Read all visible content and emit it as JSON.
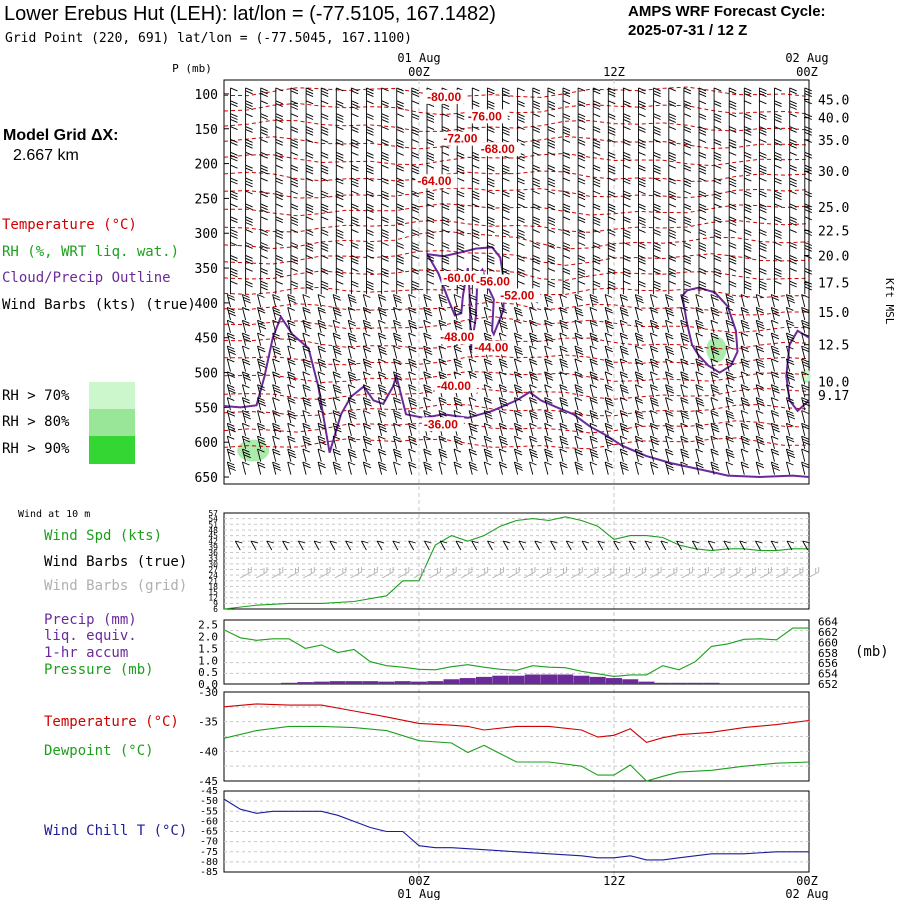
{
  "header": {
    "title": "Lower Erebus Hut (LEH):  lat/lon = (-77.5105, 167.1482)",
    "subtitle": "Grid Point (220, 691) lat/lon = (-77.5045, 167.1100)",
    "cycle_label": "AMPS WRF Forecast Cycle:",
    "cycle_value": "2025-07-31 / 12  Z"
  },
  "model_grid": {
    "label": "Model Grid ΔX:",
    "value": "2.667 km"
  },
  "time_axis": {
    "top_dates": [
      "01 Aug",
      "02 Aug"
    ],
    "ticks": [
      "00Z",
      "12Z",
      "00Z"
    ],
    "bottom_dates": [
      "01 Aug",
      "02 Aug"
    ]
  },
  "legend": {
    "temperature": "Temperature (°C)",
    "rh": "RH (%, WRT liq. wat.)",
    "cloud": "Cloud/Precip Outline",
    "barbs": "Wind Barbs (kts) (true)",
    "rh70": "RH > 70%",
    "rh80": "RH > 80%",
    "rh90": "RH > 90%",
    "rh_colors": [
      "#ccf7cc",
      "#99e699",
      "#33d633"
    ]
  },
  "colors": {
    "temperature": "#d00000",
    "rh": "#1ca01c",
    "cloud": "#6b2a9a",
    "windchill": "#1c1c9c",
    "grid": "#b0b0b0"
  },
  "chart_data": [
    {
      "type": "line",
      "name": "upper-air time-height section",
      "y_label": "P (mb)",
      "pressure_ticks": [
        100,
        150,
        200,
        250,
        300,
        350,
        400,
        450,
        500,
        550,
        600,
        650
      ],
      "kft_label": "Kft MSL",
      "kft_ticks": [
        "45.0",
        "40.0",
        "35.0",
        "30.0",
        "25.0",
        "22.5",
        "20.0",
        "17.5",
        "15.0",
        "12.5",
        "10.0",
        "9.17"
      ],
      "kft_tick_pressures": [
        108,
        134,
        166,
        211,
        262,
        296,
        332,
        371,
        413,
        460,
        513,
        532
      ],
      "temperature_contour_labels": [
        {
          "text": "-80.00",
          "hour": 0.5,
          "p": 110
        },
        {
          "text": "-76.00",
          "hour": 3.0,
          "p": 138
        },
        {
          "text": "-72.00",
          "hour": 1.5,
          "p": 170
        },
        {
          "text": "-68.00",
          "hour": 3.8,
          "p": 185
        },
        {
          "text": "-64.00",
          "hour": -0.1,
          "p": 231
        },
        {
          "text": "-60.00",
          "hour": 1.5,
          "p": 370
        },
        {
          "text": "-56.00",
          "hour": 3.5,
          "p": 375
        },
        {
          "text": "-52.00",
          "hour": 5.0,
          "p": 395
        },
        {
          "text": "-48.00",
          "hour": 1.3,
          "p": 455
        },
        {
          "text": "-44.00",
          "hour": 3.4,
          "p": 470
        },
        {
          "text": "-40.00",
          "hour": 1.1,
          "p": 525
        },
        {
          "text": "-36.00",
          "hour": 0.3,
          "p": 580
        }
      ]
    },
    {
      "type": "line",
      "name": "10 m wind",
      "header": "Wind at 10 m",
      "labels": [
        "Wind Spd (kts)",
        "Wind Barbs (true)",
        "Wind Barbs (grid)"
      ],
      "y_ticks": [
        6,
        9,
        12,
        15,
        18,
        21,
        24,
        27,
        30,
        33,
        36,
        39,
        42,
        45,
        48,
        51,
        54,
        57
      ],
      "x_hours": [
        -12,
        -10,
        -8,
        -6,
        -4,
        -2,
        -1,
        0,
        1,
        2,
        3,
        4,
        5,
        6,
        7,
        8,
        9,
        10,
        11,
        12,
        13,
        14,
        15,
        16,
        17,
        18,
        19,
        20,
        21,
        22,
        23,
        24
      ],
      "wind_speed_kts": [
        6,
        8,
        9,
        9,
        10,
        13,
        21,
        21,
        40,
        45,
        42,
        45,
        50,
        53,
        54,
        53,
        55,
        53,
        50,
        43,
        45,
        45,
        44,
        40,
        38,
        37,
        38,
        38,
        37,
        37,
        38,
        38
      ]
    },
    {
      "type": "line",
      "name": "precip and pressure",
      "labels": [
        "Precip (mm)",
        "liq. equiv.",
        "1-hr accum",
        "Pressure (mb)"
      ],
      "precip_ticks": [
        "0.0",
        "0.5",
        "1.0",
        "1.5",
        "2.0",
        "2.5"
      ],
      "pressure_ticks": [
        "652",
        "654",
        "656",
        "658",
        "660",
        "662",
        "664"
      ],
      "pressure_unit": "(mb)",
      "x_hours": [
        -12,
        -11,
        -10,
        -9,
        -8,
        -7,
        -6,
        -5,
        -4,
        -3,
        -2,
        -1,
        0,
        1,
        2,
        3,
        4,
        5,
        6,
        7,
        8,
        9,
        10,
        11,
        12,
        13,
        14,
        15,
        16,
        17,
        18,
        19,
        20,
        21,
        22,
        23,
        24
      ],
      "pressure_mb": [
        662.3,
        660.7,
        660.2,
        660.5,
        660.5,
        658.6,
        659.3,
        657.8,
        658.4,
        656.0,
        655.2,
        654.9,
        654.5,
        654.4,
        655.0,
        655.4,
        654.9,
        654.5,
        654.3,
        655.2,
        654.9,
        654.8,
        654.1,
        653.6,
        653.1,
        653.4,
        653.4,
        655.2,
        654.4,
        656.0,
        659.0,
        659.5,
        660.4,
        660.5,
        660.3,
        662.6,
        662.6
      ],
      "precip_mm": [
        0,
        0,
        0,
        0,
        0.05,
        0.08,
        0.1,
        0.12,
        0.12,
        0.12,
        0.1,
        0.12,
        0.1,
        0.12,
        0.2,
        0.25,
        0.3,
        0.35,
        0.35,
        0.4,
        0.4,
        0.4,
        0.35,
        0.3,
        0.25,
        0.2,
        0.1,
        0.05,
        0.05,
        0.05,
        0.05,
        0,
        0,
        0,
        0,
        0,
        0
      ]
    },
    {
      "type": "line",
      "name": "temperature and dewpoint",
      "labels": [
        "Temperature (°C)",
        "Dewpoint (°C)"
      ],
      "y_ticks": [
        "-30",
        "-35",
        "-40",
        "-45"
      ],
      "x_hours": [
        -12,
        -10,
        -8,
        -6,
        -4,
        -2,
        0,
        2,
        3,
        4,
        6,
        8,
        10,
        11,
        12,
        13,
        14,
        15,
        16,
        18,
        20,
        22,
        24
      ],
      "temperature_c": [
        -32.5,
        -32.0,
        -32.2,
        -32.2,
        -33.2,
        -34.2,
        -35.3,
        -35.6,
        -35.8,
        -36.4,
        -35.8,
        -35.8,
        -36.4,
        -37.6,
        -37.3,
        -36.2,
        -38.5,
        -37.7,
        -37.2,
        -36.8,
        -36.0,
        -35.5,
        -34.8
      ],
      "dewpoint_c": [
        -37.8,
        -36.5,
        -35.8,
        -35.8,
        -36.0,
        -36.5,
        -38.2,
        -38.6,
        -40.2,
        -39.0,
        -41.8,
        -41.8,
        -42.5,
        -44.0,
        -44.0,
        -42.3,
        -45.0,
        -44.2,
        -43.5,
        -43.2,
        -42.5,
        -42.0,
        -41.8
      ]
    },
    {
      "type": "line",
      "name": "wind chill",
      "labels": [
        "Wind Chill T (°C)"
      ],
      "y_ticks": [
        "-45",
        "-50",
        "-55",
        "-60",
        "-65",
        "-70",
        "-75",
        "-80",
        "-85"
      ],
      "x_hours": [
        -12,
        -11,
        -10,
        -9,
        -8,
        -7,
        -6,
        -5,
        -4,
        -3,
        -2,
        -1,
        0,
        1,
        2,
        4,
        6,
        8,
        10,
        11,
        12,
        13,
        14,
        15,
        16,
        18,
        20,
        22,
        24
      ],
      "windchill_c": [
        -49,
        -54,
        -56,
        -55,
        -55,
        -55,
        -55,
        -57,
        -60,
        -63,
        -65,
        -65,
        -72,
        -73,
        -73,
        -74,
        -75,
        -76,
        -77,
        -78,
        -78,
        -77,
        -79,
        -79,
        -78,
        -76,
        -76,
        -75,
        -75
      ]
    }
  ]
}
